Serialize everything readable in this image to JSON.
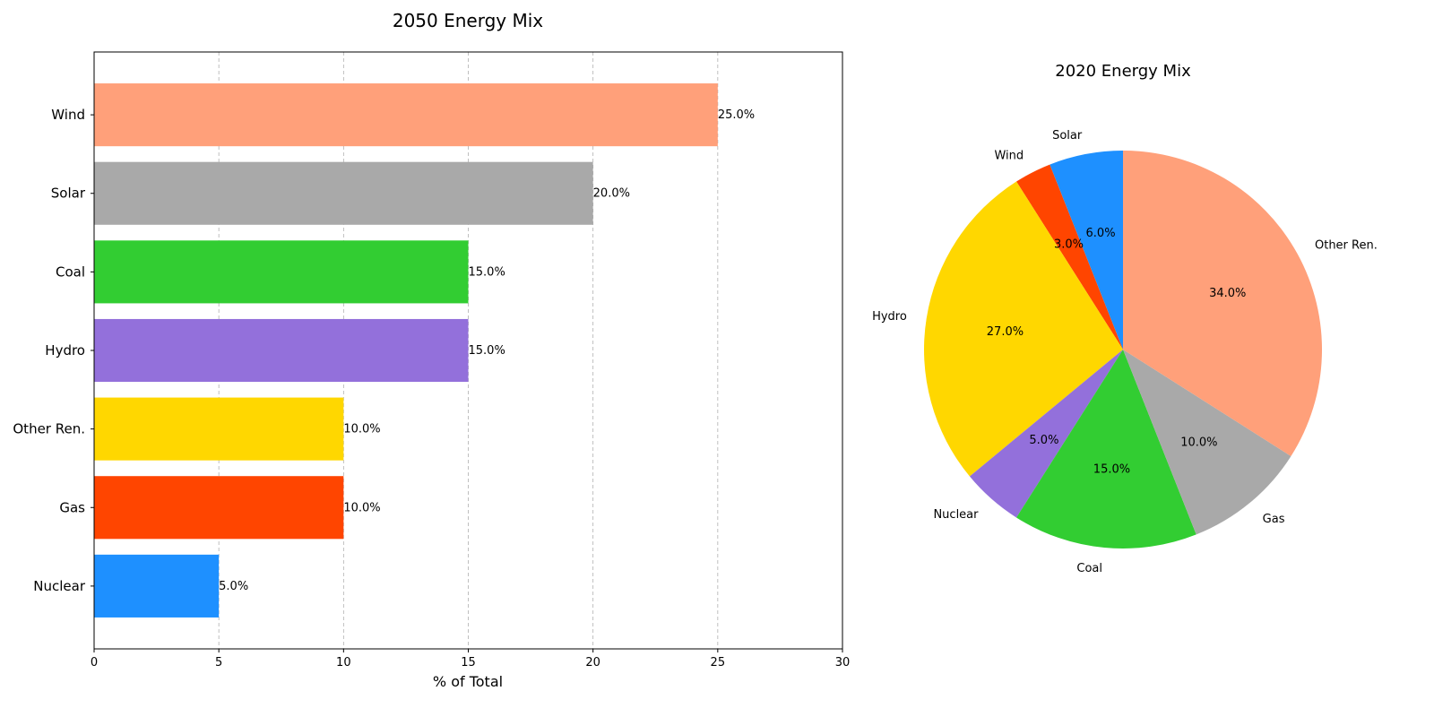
{
  "chart_data": [
    {
      "type": "bar",
      "orientation": "horizontal",
      "title": "2050 Energy Mix",
      "xlabel": "% of Total",
      "ylabel": "",
      "categories": [
        "Nuclear",
        "Gas",
        "Other Ren.",
        "Hydro",
        "Coal",
        "Solar",
        "Wind"
      ],
      "values": [
        5,
        10,
        10,
        15,
        15,
        20,
        25
      ],
      "data_labels": [
        "5.0%",
        "10.0%",
        "10.0%",
        "15.0%",
        "15.0%",
        "20.0%",
        "25.0%"
      ],
      "colors": [
        "#1e90ff",
        "#ff4500",
        "#ffd700",
        "#9370db",
        "#32cd32",
        "#a9a9a9",
        "#ffa07a"
      ],
      "xlim": [
        0,
        30
      ],
      "xticks": [
        0,
        5,
        10,
        15,
        20,
        25,
        30
      ],
      "xtick_labels": [
        "0",
        "5",
        "10",
        "15",
        "20",
        "25",
        "30"
      ],
      "grid": "x dashed"
    },
    {
      "type": "pie",
      "title": "2020 Energy Mix",
      "labels": [
        "Solar",
        "Wind",
        "Hydro",
        "Nuclear",
        "Coal",
        "Gas",
        "Other Ren."
      ],
      "values": [
        6,
        3,
        27,
        5,
        15,
        10,
        34
      ],
      "pct_labels": [
        "6.0%",
        "3.0%",
        "27.0%",
        "5.0%",
        "15.0%",
        "10.0%",
        "34.0%"
      ],
      "colors": [
        "#1e90ff",
        "#ff4500",
        "#ffd700",
        "#9370db",
        "#32cd32",
        "#a9a9a9",
        "#ffa07a"
      ],
      "start_angle": 90,
      "direction": "counterclockwise"
    }
  ]
}
